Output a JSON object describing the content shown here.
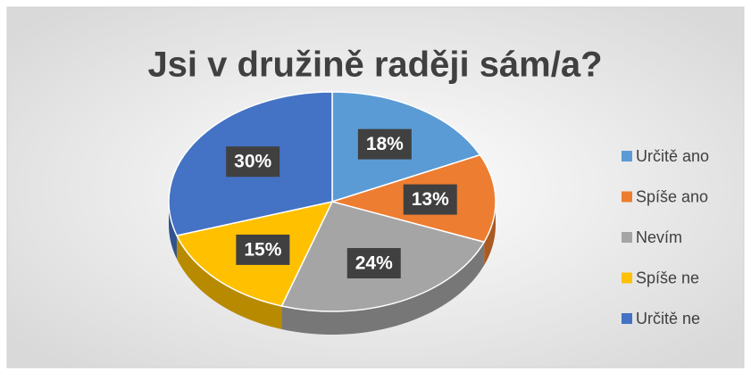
{
  "chart_data": {
    "type": "pie",
    "title": "Jsi v družině raději sám/a?",
    "categories": [
      "Určitě ano",
      "Spíše ano",
      "Nevím",
      "Spíše ne",
      "Určitě ne"
    ],
    "values": [
      18,
      13,
      24,
      15,
      30
    ],
    "value_labels": [
      "18%",
      "13%",
      "24%",
      "15%",
      "30%"
    ],
    "colors": [
      "#5b9bd5",
      "#ed7d31",
      "#a5a5a5",
      "#ffc000",
      "#4472c4"
    ],
    "legend": "right"
  }
}
